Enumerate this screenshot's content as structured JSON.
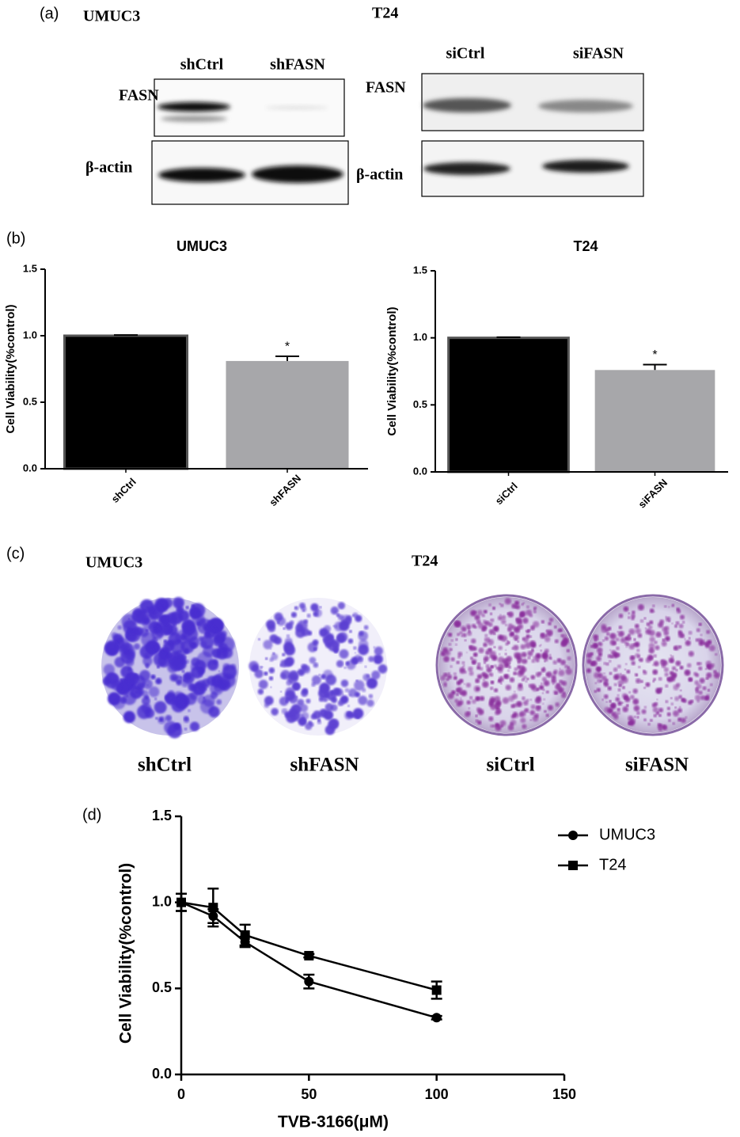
{
  "panels": {
    "a": "(a)",
    "b": "(b)",
    "c": "(c)",
    "d": "(d)"
  },
  "blots": [
    {
      "title": "UMUC3",
      "lanes": [
        "shCtrl",
        "shFASN"
      ],
      "rows": [
        "FASN",
        "β-actin"
      ]
    },
    {
      "title": "T24",
      "lanes": [
        "siCtrl",
        "siFASN"
      ],
      "rows": [
        "FASN",
        "β-actin"
      ]
    }
  ],
  "colonies": [
    {
      "title": "UMUC3",
      "labels": [
        "shCtrl",
        "shFASN"
      ]
    },
    {
      "title": "T24",
      "labels": [
        "siCtrl",
        "siFASN"
      ]
    }
  ],
  "chart_data": [
    {
      "type": "bar",
      "title": "UMUC3",
      "y_label": "Cell Viability(%control)",
      "categories": [
        "shCtrl",
        "shFASN"
      ],
      "values": [
        1.0,
        0.81
      ],
      "errors": [
        0.005,
        0.035
      ],
      "colors": [
        "#000000",
        "#a7a7aa"
      ],
      "annotations": [
        {
          "category": "shFASN",
          "text": "*"
        }
      ],
      "ylim": [
        0,
        1.5
      ],
      "yticks": [
        {
          "value": 0,
          "label": "0.0"
        },
        {
          "value": 0.5,
          "label": "0.5"
        },
        {
          "value": 1,
          "label": "1.0"
        },
        {
          "value": 1.5,
          "label": "1.5"
        }
      ]
    },
    {
      "type": "bar",
      "title": "T24",
      "y_label": "Cell Viability(%control)",
      "categories": [
        "siCtrl",
        "siFASN"
      ],
      "values": [
        1.0,
        0.76
      ],
      "errors": [
        0.005,
        0.04
      ],
      "colors": [
        "#000000",
        "#a7a7aa"
      ],
      "annotations": [
        {
          "category": "siFASN",
          "text": "*"
        }
      ],
      "ylim": [
        0,
        1.5
      ],
      "yticks": [
        {
          "value": 0,
          "label": "0.0"
        },
        {
          "value": 0.5,
          "label": "0.5"
        },
        {
          "value": 1,
          "label": "1.0"
        },
        {
          "value": 1.5,
          "label": "1.5"
        }
      ]
    },
    {
      "type": "line",
      "x_label": "TVB-3166(μM)",
      "y_label": "Cell Viability(%control)",
      "x": [
        0,
        12.5,
        25,
        50,
        100
      ],
      "series": [
        {
          "name": "UMUC3",
          "color": "#000000",
          "marker": "circle",
          "values": [
            1.0,
            0.92,
            0.77,
            0.54,
            0.33
          ],
          "errors": [
            0.05,
            0.04,
            0.03,
            0.04,
            0.01
          ]
        },
        {
          "name": "T24",
          "color": "#000000",
          "marker": "square",
          "values": [
            1.0,
            0.97,
            0.81,
            0.69,
            0.49
          ],
          "errors": [
            0.05,
            0.11,
            0.06,
            0.01,
            0.05
          ]
        }
      ],
      "xlim": [
        0,
        150
      ],
      "xticks": [
        0,
        50,
        100,
        150
      ],
      "ylim": [
        0,
        1.5
      ],
      "yticks": [
        {
          "value": 0,
          "label": "0.0"
        },
        {
          "value": 0.5,
          "label": "0.5"
        },
        {
          "value": 1,
          "label": "1.0"
        },
        {
          "value": 1.5,
          "label": "1.5"
        }
      ],
      "legend": "top right"
    }
  ]
}
